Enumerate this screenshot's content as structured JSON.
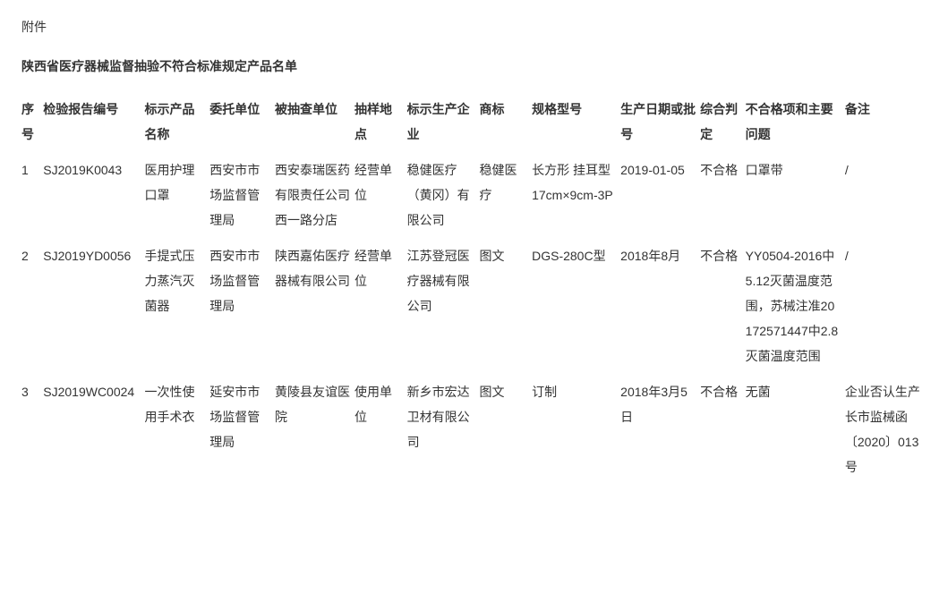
{
  "attachment_label": "附件",
  "title": "陕西省医疗器械监督抽验不符合标准规定产品名单",
  "columns": [
    "序号",
    "检验报告编号",
    "标示产品名称",
    "委托单位",
    "被抽查单位",
    "抽样地点",
    "标示生产企业",
    "商标",
    "规格型号",
    "生产日期或批号",
    "综合判定",
    "不合格项和主要问题",
    "备注"
  ],
  "rows": [
    {
      "seq": "1",
      "report_no": "SJ2019K0043",
      "product_name": "医用护理口罩",
      "client": "西安市市场监督管理局",
      "inspected_unit": "西安泰瑞医药有限责任公司西一路分店",
      "sampling_site": "经营单位",
      "manufacturer": "稳健医疗（黄冈）有限公司",
      "trademark": "稳健医疗",
      "spec": "长方形 挂耳型 17cm×9cm-3P",
      "prod_date": "2019-01-05",
      "verdict": "不合格",
      "issues": "口罩带",
      "remark": "/"
    },
    {
      "seq": "2",
      "report_no": "SJ2019YD0056",
      "product_name": "手提式压力蒸汽灭菌器",
      "client": "西安市市场监督管理局",
      "inspected_unit": "陕西嘉佑医疗器械有限公司",
      "sampling_site": "经营单位",
      "manufacturer": "江苏登冠医疗器械有限公司",
      "trademark": "图文",
      "spec": "DGS-280C型",
      "prod_date": "2018年8月",
      "verdict": "不合格",
      "issues": "YY0504-2016中5.12灭菌温度范围，苏械注准20172571447中2.8灭菌温度范围",
      "remark": "/"
    },
    {
      "seq": "3",
      "report_no": "SJ2019WC0024",
      "product_name": "一次性使用手术衣",
      "client": "延安市市场监督管理局",
      "inspected_unit": "黄陵县友谊医院",
      "sampling_site": "使用单位",
      "manufacturer": "新乡市宏达卫材有限公司",
      "trademark": "图文",
      "spec": "订制",
      "prod_date": "2018年3月5日",
      "verdict": "不合格",
      "issues": "无菌",
      "remark": "企业否认生产长市监械函〔2020〕013号"
    }
  ]
}
